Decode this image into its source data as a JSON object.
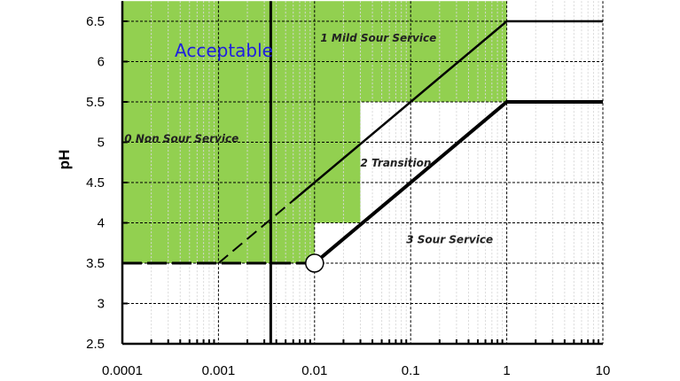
{
  "chart_data": {
    "type": "line",
    "title": "",
    "xlabel": "",
    "ylabel": "pH",
    "x_scale": "log",
    "xlim": [
      0.0001,
      10
    ],
    "ylim": [
      2.5,
      6.75
    ],
    "x_ticks": [
      "0.0001",
      "0.001",
      "0.01",
      "0.1",
      "1",
      "10"
    ],
    "y_ticks": [
      "2.5",
      "3",
      "3.5",
      "4",
      "4.5",
      "5",
      "5.5",
      "6",
      "6.5"
    ],
    "grid": true,
    "colors": {
      "acceptable_fill": "#92d050",
      "acceptable_text": "#1f1fe0",
      "lines": "#000000"
    },
    "acceptable_region": {
      "label": "Acceptable",
      "polygon": [
        [
          0.0001,
          6.75
        ],
        [
          1,
          6.75
        ],
        [
          1,
          5.5
        ],
        [
          0.03,
          5.5
        ],
        [
          0.03,
          4.0
        ],
        [
          0.01,
          4.0
        ],
        [
          0.01,
          3.5
        ],
        [
          0.0001,
          3.5
        ]
      ]
    },
    "series": [
      {
        "points": [
          [
            0.001,
            3.5
          ],
          [
            1,
            6.5
          ],
          [
            10,
            6.5
          ]
        ],
        "dashed_until": 0.006
      },
      {
        "points": [
          [
            0.01,
            3.5
          ],
          [
            1,
            5.5
          ],
          [
            10,
            5.5
          ]
        ],
        "heavy": true
      },
      {
        "points": [
          [
            0.0001,
            3.5
          ],
          [
            0.01,
            3.5
          ]
        ],
        "dashed": true
      },
      {
        "points": [
          [
            0.0035,
            2.5
          ],
          [
            0.0035,
            6.75
          ]
        ],
        "vertical": true
      }
    ],
    "marker": {
      "x": 0.01,
      "y": 3.5,
      "shape": "open-circle"
    },
    "region_labels": [
      {
        "text": "0 Non Sour Service",
        "x": 0.000105,
        "y": 5.0
      },
      {
        "text": "1 Mild Sour Service",
        "x": 0.0115,
        "y": 6.25
      },
      {
        "text": "2 Transition",
        "x": 0.03,
        "y": 4.7
      },
      {
        "text": "3 Sour Service",
        "x": 0.09,
        "y": 3.75
      }
    ]
  }
}
